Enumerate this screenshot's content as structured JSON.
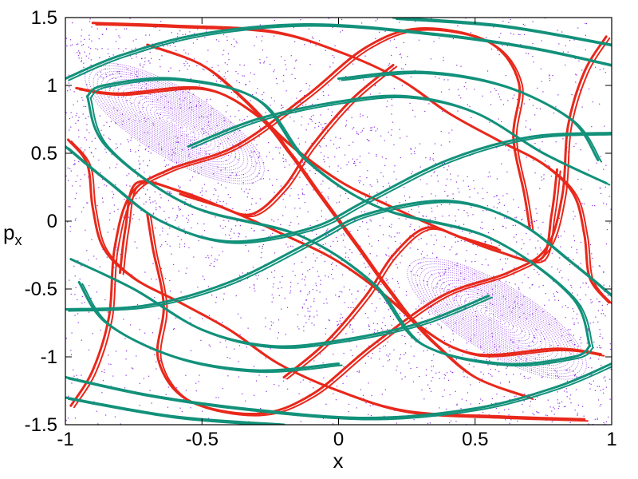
{
  "chart_data": {
    "type": "scatter",
    "title": "",
    "xlabel": "x",
    "ylabel_main": "p",
    "ylabel_sub": "x",
    "xlim": [
      -1,
      1
    ],
    "ylim": [
      -1.5,
      1.5
    ],
    "x_ticks": [
      -1,
      -0.5,
      0,
      0.5,
      1
    ],
    "x_tick_labels": [
      "-1",
      "-0.5",
      "0",
      "0.5",
      "1"
    ],
    "y_ticks": [
      -1.5,
      -1,
      -0.5,
      0,
      0.5,
      1,
      1.5
    ],
    "y_tick_labels": [
      "-1.5",
      "-1",
      "-0.5",
      "0",
      "0.5",
      "1",
      "1.5"
    ],
    "grid": false,
    "legend": "none",
    "colors": {
      "poincare": "#8a2be2",
      "unstable_manifold": "#e8281b",
      "stable_manifold": "#12917a"
    },
    "regular_islands": [
      {
        "cx": -0.6,
        "cy": 0.72,
        "rx": 0.3,
        "ry": 0.42,
        "tilt_deg": -24
      },
      {
        "cx": 0.58,
        "cy": -0.72,
        "rx": 0.3,
        "ry": 0.42,
        "tilt_deg": -24
      }
    ],
    "series": [
      {
        "kind": "curve",
        "color_key": "unstable_manifold",
        "points": [
          [
            -0.98,
            -1.36
          ],
          [
            -0.9,
            -1.1
          ],
          [
            -0.84,
            -0.7
          ],
          [
            -0.82,
            -0.2
          ],
          [
            -0.76,
            0.2
          ],
          [
            -0.62,
            0.38
          ],
          [
            -0.38,
            0.55
          ],
          [
            -0.12,
            0.92
          ],
          [
            0.1,
            1.28
          ],
          [
            0.3,
            1.42
          ],
          [
            0.55,
            1.32
          ],
          [
            0.66,
            1.02
          ],
          [
            0.64,
            0.62
          ],
          [
            0.68,
            0.2
          ],
          [
            0.7,
            -0.05
          ]
        ]
      },
      {
        "kind": "curve",
        "color_key": "unstable_manifold",
        "points": [
          [
            0.98,
            1.36
          ],
          [
            0.9,
            1.1
          ],
          [
            0.84,
            0.7
          ],
          [
            0.82,
            0.2
          ],
          [
            0.76,
            -0.2
          ],
          [
            0.62,
            -0.38
          ],
          [
            0.38,
            -0.55
          ],
          [
            0.12,
            -0.92
          ],
          [
            -0.1,
            -1.28
          ],
          [
            -0.3,
            -1.42
          ],
          [
            -0.55,
            -1.32
          ],
          [
            -0.66,
            -1.02
          ],
          [
            -0.64,
            -0.62
          ],
          [
            -0.68,
            -0.2
          ],
          [
            -0.7,
            0.05
          ]
        ]
      },
      {
        "kind": "curve",
        "color_key": "unstable_manifold",
        "points": [
          [
            -0.96,
            0.98
          ],
          [
            -0.8,
            0.94
          ],
          [
            -0.5,
            0.98
          ],
          [
            -0.3,
            0.78
          ],
          [
            -0.18,
            0.5
          ],
          [
            -0.08,
            0.22
          ],
          [
            0.0,
            0.0
          ],
          [
            0.08,
            -0.22
          ],
          [
            0.18,
            -0.5
          ],
          [
            0.3,
            -0.78
          ],
          [
            0.5,
            -0.98
          ],
          [
            0.8,
            -0.94
          ],
          [
            0.96,
            -0.98
          ]
        ]
      },
      {
        "kind": "curve",
        "color_key": "unstable_manifold",
        "points": [
          [
            -0.99,
            0.6
          ],
          [
            -0.92,
            0.42
          ],
          [
            -0.9,
            0.1
          ],
          [
            -0.86,
            -0.2
          ],
          [
            -0.75,
            -0.42
          ],
          [
            -0.58,
            -0.6
          ],
          [
            -0.4,
            -0.8
          ],
          [
            -0.22,
            -1.05
          ],
          [
            0.0,
            -1.25
          ],
          [
            0.25,
            -1.4
          ],
          [
            0.6,
            -1.44
          ],
          [
            0.9,
            -1.46
          ]
        ]
      },
      {
        "kind": "curve",
        "color_key": "unstable_manifold",
        "points": [
          [
            0.99,
            -0.6
          ],
          [
            0.92,
            -0.42
          ],
          [
            0.9,
            -0.1
          ],
          [
            0.86,
            0.2
          ],
          [
            0.75,
            0.42
          ],
          [
            0.58,
            0.6
          ],
          [
            0.4,
            0.8
          ],
          [
            0.22,
            1.05
          ],
          [
            0.0,
            1.25
          ],
          [
            -0.25,
            1.4
          ],
          [
            -0.6,
            1.44
          ],
          [
            -0.9,
            1.46
          ]
        ]
      },
      {
        "kind": "curve",
        "color_key": "unstable_manifold",
        "points": [
          [
            -0.8,
            -0.38
          ],
          [
            -0.78,
            -0.05
          ],
          [
            -0.74,
            0.28
          ],
          [
            -0.58,
            0.22
          ],
          [
            -0.4,
            0.08
          ],
          [
            -0.2,
            -0.1
          ],
          [
            0.0,
            -0.3
          ],
          [
            0.2,
            -0.6
          ],
          [
            0.35,
            -0.9
          ],
          [
            0.5,
            -1.15
          ],
          [
            0.7,
            -1.3
          ]
        ]
      },
      {
        "kind": "curve",
        "color_key": "unstable_manifold",
        "points": [
          [
            0.8,
            0.38
          ],
          [
            0.78,
            0.05
          ],
          [
            0.74,
            -0.28
          ],
          [
            0.58,
            -0.22
          ],
          [
            0.4,
            -0.08
          ],
          [
            0.2,
            0.1
          ],
          [
            0.0,
            0.3
          ],
          [
            -0.2,
            0.6
          ],
          [
            -0.35,
            0.9
          ],
          [
            -0.5,
            1.15
          ],
          [
            -0.7,
            1.3
          ]
        ]
      },
      {
        "kind": "curve",
        "color_key": "unstable_manifold",
        "points": [
          [
            -0.58,
            0.2
          ],
          [
            -0.45,
            0.12
          ],
          [
            -0.32,
            0.05
          ],
          [
            -0.2,
            0.25
          ],
          [
            -0.1,
            0.55
          ],
          [
            0.05,
            0.9
          ],
          [
            0.2,
            1.15
          ]
        ]
      },
      {
        "kind": "curve",
        "color_key": "unstable_manifold",
        "points": [
          [
            0.58,
            -0.2
          ],
          [
            0.45,
            -0.12
          ],
          [
            0.32,
            -0.05
          ],
          [
            0.2,
            -0.25
          ],
          [
            0.1,
            -0.55
          ],
          [
            -0.05,
            -0.9
          ],
          [
            -0.2,
            -1.15
          ]
        ]
      },
      {
        "kind": "curve",
        "color_key": "stable_manifold",
        "points": [
          [
            -0.92,
            0.92
          ],
          [
            -0.86,
            1.0
          ],
          [
            -0.6,
            1.05
          ],
          [
            -0.3,
            0.9
          ],
          [
            -0.12,
            0.45
          ],
          [
            0.15,
            0.1
          ],
          [
            0.55,
            -0.12
          ],
          [
            0.85,
            -0.55
          ],
          [
            0.92,
            -0.92
          ]
        ]
      },
      {
        "kind": "curve",
        "color_key": "stable_manifold",
        "points": [
          [
            0.92,
            -0.92
          ],
          [
            0.86,
            -1.0
          ],
          [
            0.6,
            -1.05
          ],
          [
            0.3,
            -0.9
          ],
          [
            0.12,
            -0.45
          ],
          [
            -0.15,
            -0.1
          ],
          [
            -0.55,
            0.12
          ],
          [
            -0.85,
            0.55
          ],
          [
            -0.92,
            0.92
          ]
        ]
      },
      {
        "kind": "curve",
        "color_key": "stable_manifold",
        "points": [
          [
            -1.0,
            -1.15
          ],
          [
            -0.7,
            -1.28
          ],
          [
            -0.35,
            -1.38
          ],
          [
            0.1,
            -1.45
          ],
          [
            0.5,
            -1.38
          ],
          [
            0.8,
            -1.22
          ],
          [
            1.0,
            -1.05
          ]
        ]
      },
      {
        "kind": "curve",
        "color_key": "stable_manifold",
        "points": [
          [
            -1.0,
            -1.3
          ],
          [
            -0.6,
            -1.44
          ],
          [
            -0.2,
            -1.5
          ]
        ]
      },
      {
        "kind": "curve",
        "color_key": "stable_manifold",
        "points": [
          [
            1.0,
            1.15
          ],
          [
            0.7,
            1.28
          ],
          [
            0.35,
            1.38
          ],
          [
            -0.1,
            1.45
          ],
          [
            -0.5,
            1.38
          ],
          [
            -0.8,
            1.22
          ],
          [
            -1.0,
            1.05
          ]
        ]
      },
      {
        "kind": "curve",
        "color_key": "stable_manifold",
        "points": [
          [
            1.0,
            1.3
          ],
          [
            0.6,
            1.44
          ],
          [
            0.2,
            1.5
          ]
        ]
      },
      {
        "kind": "curve",
        "color_key": "stable_manifold",
        "points": [
          [
            -1.0,
            0.55
          ],
          [
            -0.85,
            0.3
          ],
          [
            -0.65,
            0.0
          ],
          [
            -0.4,
            -0.15
          ],
          [
            -0.1,
            -0.05
          ],
          [
            0.1,
            0.15
          ],
          [
            0.4,
            0.45
          ],
          [
            0.7,
            0.62
          ],
          [
            1.0,
            0.65
          ]
        ]
      },
      {
        "kind": "curve",
        "color_key": "stable_manifold",
        "points": [
          [
            1.0,
            -0.55
          ],
          [
            0.85,
            -0.3
          ],
          [
            0.65,
            0.0
          ],
          [
            0.4,
            0.15
          ],
          [
            0.1,
            0.05
          ],
          [
            -0.1,
            -0.15
          ],
          [
            -0.4,
            -0.45
          ],
          [
            -0.7,
            -0.62
          ],
          [
            -1.0,
            -0.65
          ]
        ]
      },
      {
        "kind": "curve",
        "color_key": "stable_manifold",
        "points": [
          [
            -0.98,
            -0.28
          ],
          [
            -0.75,
            -0.5
          ],
          [
            -0.5,
            -0.8
          ],
          [
            -0.25,
            -0.92
          ],
          [
            0.0,
            -0.88
          ],
          [
            0.3,
            -0.75
          ],
          [
            0.55,
            -0.55
          ]
        ]
      },
      {
        "kind": "curve",
        "color_key": "stable_manifold",
        "points": [
          [
            0.98,
            0.28
          ],
          [
            0.75,
            0.5
          ],
          [
            0.5,
            0.8
          ],
          [
            0.25,
            0.92
          ],
          [
            0.0,
            0.88
          ],
          [
            -0.3,
            0.75
          ],
          [
            -0.55,
            0.55
          ]
        ]
      },
      {
        "kind": "curve",
        "color_key": "stable_manifold",
        "points": [
          [
            0.0,
            1.05
          ],
          [
            0.3,
            1.1
          ],
          [
            0.6,
            1.0
          ],
          [
            0.85,
            0.75
          ],
          [
            0.95,
            0.45
          ]
        ]
      },
      {
        "kind": "curve",
        "color_key": "stable_manifold",
        "points": [
          [
            0.0,
            -1.05
          ],
          [
            -0.3,
            -1.1
          ],
          [
            -0.6,
            -1.0
          ],
          [
            -0.85,
            -0.75
          ],
          [
            -0.95,
            -0.45
          ]
        ]
      }
    ]
  }
}
